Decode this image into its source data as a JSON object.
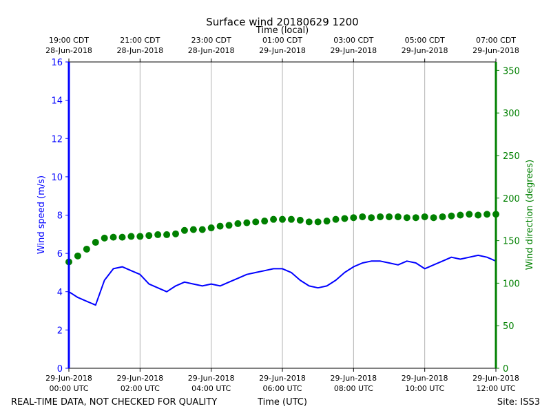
{
  "chart_data": {
    "type": "line",
    "title": "Surface wind 20180629 1200",
    "top_axis_title": "Time (local)",
    "xlabel": "Time (UTC)",
    "ylabel_left": "Wind speed (m/s)",
    "ylabel_right": "Wind direction (degrees)",
    "xlim_hours_utc": [
      0,
      12
    ],
    "ylim_left": [
      0,
      16
    ],
    "ylim_right": [
      0,
      360
    ],
    "grid": "vertical",
    "left_ticks": [
      "0",
      "2",
      "4",
      "6",
      "8",
      "10",
      "12",
      "14",
      "16"
    ],
    "right_ticks": [
      "0",
      "50",
      "100",
      "150",
      "200",
      "250",
      "300",
      "350"
    ],
    "bottom_ticks": [
      {
        "date": "29-Jun-2018",
        "time": "00:00 UTC"
      },
      {
        "date": "29-Jun-2018",
        "time": "02:00 UTC"
      },
      {
        "date": "29-Jun-2018",
        "time": "04:00 UTC"
      },
      {
        "date": "29-Jun-2018",
        "time": "06:00 UTC"
      },
      {
        "date": "29-Jun-2018",
        "time": "08:00 UTC"
      },
      {
        "date": "29-Jun-2018",
        "time": "10:00 UTC"
      },
      {
        "date": "29-Jun-2018",
        "time": "12:00 UTC"
      }
    ],
    "top_ticks": [
      {
        "time": "19:00 CDT",
        "date": "28-Jun-2018"
      },
      {
        "time": "21:00 CDT",
        "date": "28-Jun-2018"
      },
      {
        "time": "23:00 CDT",
        "date": "28-Jun-2018"
      },
      {
        "time": "01:00 CDT",
        "date": "29-Jun-2018"
      },
      {
        "time": "03:00 CDT",
        "date": "29-Jun-2018"
      },
      {
        "time": "05:00 CDT",
        "date": "29-Jun-2018"
      },
      {
        "time": "07:00 CDT",
        "date": "29-Jun-2018"
      }
    ],
    "series": [
      {
        "name": "Wind speed",
        "axis": "left",
        "style": "line",
        "color": "#0000ff",
        "x_hours_utc": [
          0,
          0.25,
          0.5,
          0.75,
          1,
          1.25,
          1.5,
          1.75,
          2,
          2.25,
          2.5,
          2.75,
          3,
          3.25,
          3.5,
          3.75,
          4,
          4.25,
          4.5,
          4.75,
          5,
          5.25,
          5.5,
          5.75,
          6,
          6.25,
          6.5,
          6.75,
          7,
          7.25,
          7.5,
          7.75,
          8,
          8.25,
          8.5,
          8.75,
          9,
          9.25,
          9.5,
          9.75,
          10,
          10.25,
          10.5,
          10.75,
          11,
          11.25,
          11.5,
          11.75,
          12
        ],
        "values": [
          4.0,
          3.7,
          3.5,
          3.3,
          4.6,
          5.2,
          5.3,
          5.1,
          4.9,
          4.4,
          4.2,
          4.0,
          4.3,
          4.5,
          4.4,
          4.3,
          4.4,
          4.3,
          4.5,
          4.7,
          4.9,
          5.0,
          5.1,
          5.2,
          5.2,
          5.0,
          4.6,
          4.3,
          4.2,
          4.3,
          4.6,
          5.0,
          5.3,
          5.5,
          5.6,
          5.6,
          5.5,
          5.4,
          5.6,
          5.5,
          5.2,
          5.4,
          5.6,
          5.8,
          5.7,
          5.8,
          5.9,
          5.8,
          5.6
        ]
      },
      {
        "name": "Wind direction",
        "axis": "right",
        "style": "markers",
        "color": "#008000",
        "x_hours_utc": [
          0,
          0.25,
          0.5,
          0.75,
          1,
          1.25,
          1.5,
          1.75,
          2,
          2.25,
          2.5,
          2.75,
          3,
          3.25,
          3.5,
          3.75,
          4,
          4.25,
          4.5,
          4.75,
          5,
          5.25,
          5.5,
          5.75,
          6,
          6.25,
          6.5,
          6.75,
          7,
          7.25,
          7.5,
          7.75,
          8,
          8.25,
          8.5,
          8.75,
          9,
          9.25,
          9.5,
          9.75,
          10,
          10.25,
          10.5,
          10.75,
          11,
          11.25,
          11.5,
          11.75,
          12
        ],
        "values": [
          125,
          132,
          140,
          148,
          153,
          154,
          154,
          155,
          155,
          156,
          157,
          157,
          158,
          162,
          163,
          163,
          165,
          167,
          168,
          170,
          171,
          172,
          173,
          175,
          175,
          175,
          174,
          172,
          172,
          173,
          175,
          176,
          177,
          178,
          177,
          178,
          178,
          178,
          177,
          177,
          178,
          177,
          178,
          179,
          180,
          181,
          180,
          181,
          181
        ]
      }
    ],
    "footer_left": "REAL-TIME DATA, NOT CHECKED FOR QUALITY",
    "footer_right": "Site: ISS3"
  }
}
